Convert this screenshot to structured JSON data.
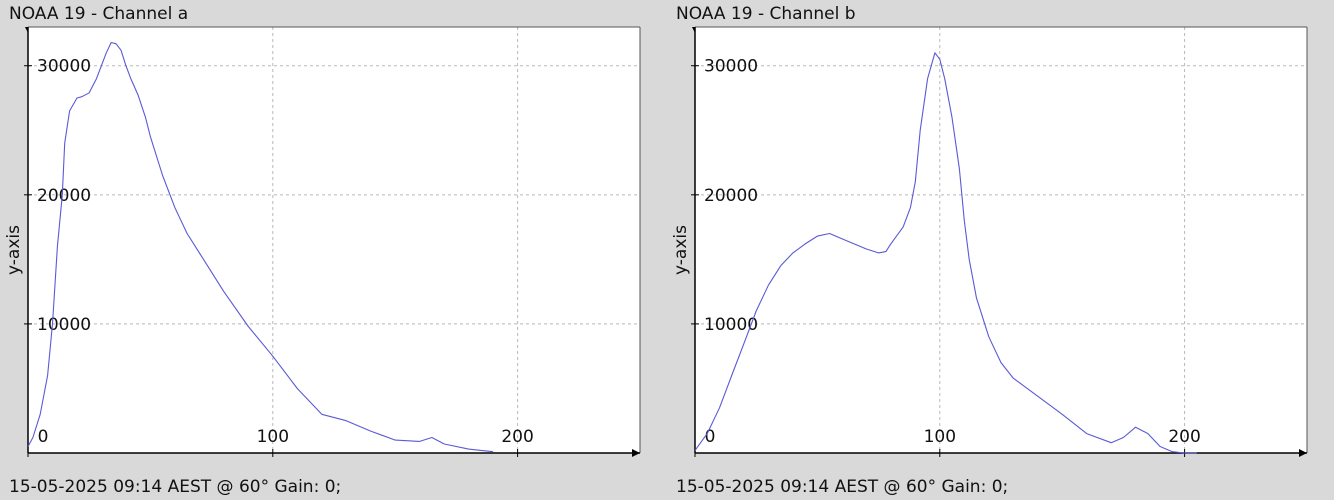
{
  "chart_data": [
    {
      "type": "line",
      "title": "NOAA 19 - Channel a",
      "footer": "15-05-2025 09:14 AEST @ 60° Gain: 0;",
      "xlabel": "",
      "ylabel": "y-axis",
      "xlim": [
        0,
        250
      ],
      "ylim": [
        0,
        33000
      ],
      "xticks": [
        0,
        100,
        200
      ],
      "yticks": [
        10000,
        20000,
        30000
      ],
      "grid": true,
      "series": [
        {
          "color": "#5a5ad6",
          "x": [
            0,
            2,
            5,
            8,
            10,
            12,
            14,
            15,
            17,
            20,
            22,
            25,
            28,
            30,
            32,
            34,
            36,
            38,
            40,
            42,
            45,
            48,
            50,
            55,
            60,
            65,
            70,
            80,
            90,
            100,
            110,
            120,
            130,
            140,
            150,
            160,
            165,
            170,
            180,
            185,
            190
          ],
          "y": [
            500,
            1200,
            3000,
            6000,
            10000,
            16000,
            20000,
            24000,
            26500,
            27500,
            27600,
            27900,
            29000,
            30000,
            31000,
            31800,
            31700,
            31200,
            30000,
            29000,
            27700,
            26000,
            24500,
            21500,
            19000,
            17000,
            15500,
            12500,
            9800,
            7500,
            5000,
            3000,
            2500,
            1700,
            1000,
            900,
            1200,
            700,
            300,
            200,
            100
          ]
        }
      ]
    },
    {
      "type": "line",
      "title": "NOAA 19 - Channel b",
      "footer": "15-05-2025 09:14 AEST @ 60° Gain: 0;",
      "xlabel": "",
      "ylabel": "y-axis",
      "xlim": [
        0,
        250
      ],
      "ylim": [
        0,
        33000
      ],
      "xticks": [
        0,
        100,
        200
      ],
      "yticks": [
        10000,
        20000,
        30000
      ],
      "grid": true,
      "series": [
        {
          "color": "#5a5ad6",
          "x": [
            0,
            5,
            10,
            15,
            20,
            25,
            30,
            35,
            40,
            45,
            50,
            55,
            60,
            65,
            70,
            75,
            78,
            80,
            85,
            88,
            90,
            92,
            95,
            98,
            100,
            102,
            105,
            108,
            110,
            112,
            115,
            120,
            125,
            130,
            140,
            150,
            160,
            170,
            175,
            180,
            185,
            190,
            195,
            200,
            205
          ],
          "y": [
            200,
            1500,
            3500,
            6000,
            8500,
            11000,
            13000,
            14500,
            15500,
            16200,
            16800,
            17000,
            16600,
            16200,
            15800,
            15500,
            15600,
            16200,
            17500,
            19000,
            21000,
            25000,
            29000,
            31000,
            30500,
            29000,
            26000,
            22000,
            18000,
            15000,
            12000,
            9000,
            7000,
            5800,
            4400,
            3000,
            1500,
            800,
            1200,
            2000,
            1500,
            500,
            100,
            0,
            0
          ]
        }
      ]
    }
  ]
}
